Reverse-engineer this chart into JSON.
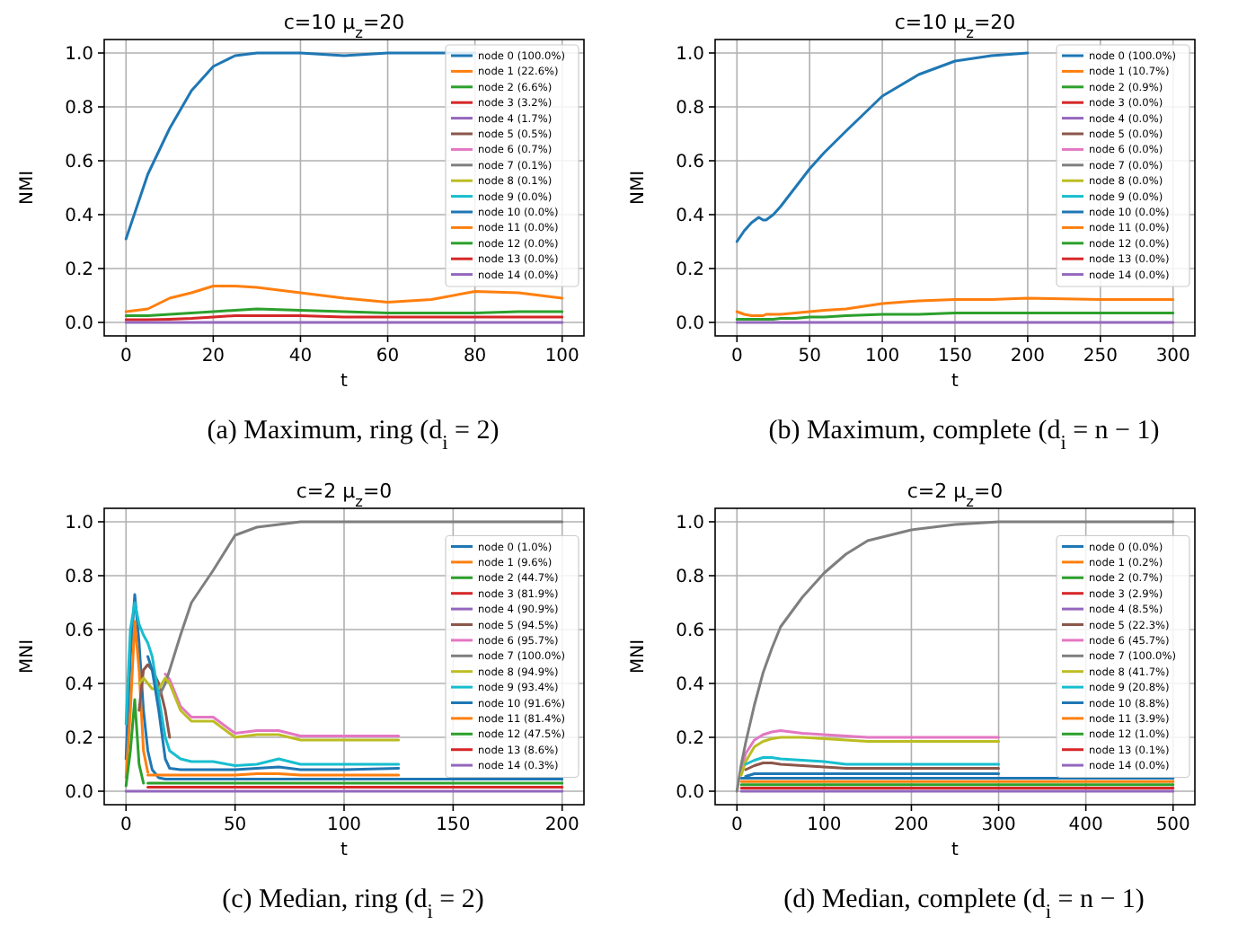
{
  "chart_data": [
    {
      "type": "line",
      "title": "c=10 μ$_{z}$=20",
      "xlabel": "t",
      "ylabel": "NMI",
      "annotations": [
        "(a) Maximum, ring (d$_{i}$ = 2)"
      ],
      "grid": true,
      "legend": "top right",
      "xlim": [
        -5,
        105
      ],
      "ylim": [
        -0.05,
        1.05
      ],
      "xticks": [
        0,
        20,
        40,
        60,
        80,
        100
      ],
      "yticks": [
        {
          "value": 0,
          "label": "0.0"
        },
        {
          "value": 0.2,
          "label": "0.2"
        },
        {
          "value": 0.4,
          "label": "0.4"
        },
        {
          "value": 0.6,
          "label": "0.6"
        },
        {
          "value": 0.8,
          "label": "0.8"
        },
        {
          "value": 1,
          "label": "1.0"
        }
      ],
      "x": [
        0,
        5,
        10,
        15,
        20,
        25,
        30,
        40,
        50,
        60,
        70,
        80,
        90,
        100
      ],
      "series": [
        {
          "name": "node 0 (100.0%)",
          "color": "#1f77b4",
          "values": [
            0.31,
            0.55,
            0.72,
            0.86,
            0.95,
            0.99,
            1.0,
            1.0,
            0.99,
            1.0,
            1.0,
            1.0,
            null,
            null
          ]
        },
        {
          "name": "node 1 (22.6%)",
          "color": "#ff7f0e",
          "values": [
            0.04,
            0.05,
            0.09,
            0.11,
            0.135,
            0.135,
            0.13,
            0.11,
            0.09,
            0.075,
            0.085,
            0.115,
            0.11,
            0.09
          ]
        },
        {
          "name": "node 2 (6.6%)",
          "color": "#2ca02c",
          "values": [
            0.025,
            0.025,
            0.03,
            0.035,
            0.04,
            0.045,
            0.05,
            0.045,
            0.04,
            0.035,
            0.035,
            0.035,
            0.04,
            0.04
          ]
        },
        {
          "name": "node 3 (3.2%)",
          "color": "#d62728",
          "values": [
            0.01,
            0.01,
            0.012,
            0.015,
            0.02,
            0.025,
            0.025,
            0.025,
            0.02,
            0.02,
            0.02,
            0.02,
            0.02,
            0.02
          ]
        },
        {
          "name": "node 4 (1.7%)",
          "color": "#9467bd",
          "values": [
            null,
            null,
            null,
            null,
            null,
            null,
            null,
            null,
            null,
            null,
            null,
            null,
            null,
            null
          ]
        },
        {
          "name": "node 5 (0.5%)",
          "color": "#8c564b",
          "values": [
            null,
            null,
            null,
            null,
            null,
            null,
            null,
            null,
            null,
            null,
            null,
            null,
            null,
            null
          ]
        },
        {
          "name": "node 6 (0.7%)",
          "color": "#e377c2",
          "values": [
            null,
            null,
            null,
            null,
            null,
            null,
            null,
            null,
            null,
            null,
            null,
            null,
            null,
            null
          ]
        },
        {
          "name": "node 7 (0.1%)",
          "color": "#7f7f7f",
          "values": [
            null,
            null,
            null,
            null,
            null,
            null,
            null,
            null,
            null,
            null,
            null,
            null,
            null,
            null
          ]
        },
        {
          "name": "node 8 (0.1%)",
          "color": "#bcbd22",
          "values": [
            null,
            null,
            null,
            null,
            null,
            null,
            null,
            null,
            null,
            null,
            null,
            null,
            null,
            null
          ]
        },
        {
          "name": "node 9 (0.0%)",
          "color": "#17becf",
          "values": [
            null,
            null,
            null,
            null,
            null,
            null,
            null,
            null,
            null,
            null,
            null,
            null,
            null,
            null
          ]
        },
        {
          "name": "node 10 (0.0%)",
          "color": "#1f77b4",
          "values": [
            null,
            null,
            null,
            null,
            null,
            null,
            null,
            null,
            null,
            null,
            null,
            null,
            null,
            null
          ]
        },
        {
          "name": "node 11 (0.0%)",
          "color": "#ff7f0e",
          "values": [
            null,
            null,
            null,
            null,
            null,
            null,
            null,
            null,
            null,
            null,
            null,
            null,
            null,
            null
          ]
        },
        {
          "name": "node 12 (0.0%)",
          "color": "#2ca02c",
          "values": [
            null,
            null,
            null,
            null,
            null,
            null,
            null,
            null,
            null,
            null,
            null,
            null,
            null,
            null
          ]
        },
        {
          "name": "node 13 (0.0%)",
          "color": "#d62728",
          "values": [
            null,
            null,
            null,
            null,
            null,
            null,
            null,
            null,
            null,
            null,
            null,
            null,
            null,
            null
          ]
        },
        {
          "name": "node 14 (0.0%)",
          "color": "#9467bd",
          "values": [
            0.0,
            0.0,
            0.0,
            0.0,
            0.0,
            0.0,
            0.0,
            0.0,
            0.0,
            0.0,
            0.0,
            0.0,
            0.0,
            0.0
          ]
        }
      ]
    },
    {
      "type": "line",
      "title": "c=10 μ$_{z}$=20",
      "xlabel": "t",
      "ylabel": "NMI",
      "annotations": [
        "(b) Maximum, complete (d$_{i}$ = n − 1)"
      ],
      "grid": true,
      "legend": "top right",
      "xlim": [
        -15,
        315
      ],
      "ylim": [
        -0.05,
        1.05
      ],
      "xticks": [
        0,
        50,
        100,
        150,
        200,
        250,
        300
      ],
      "yticks": [
        {
          "value": 0,
          "label": "0.0"
        },
        {
          "value": 0.2,
          "label": "0.2"
        },
        {
          "value": 0.4,
          "label": "0.4"
        },
        {
          "value": 0.6,
          "label": "0.6"
        },
        {
          "value": 0.8,
          "label": "0.8"
        },
        {
          "value": 1,
          "label": "1.0"
        }
      ],
      "x": [
        0,
        5,
        10,
        15,
        18,
        20,
        25,
        30,
        40,
        50,
        60,
        75,
        100,
        125,
        150,
        175,
        200,
        250,
        300
      ],
      "series": [
        {
          "name": "node 0 (100.0%)",
          "color": "#1f77b4",
          "values": [
            0.3,
            0.34,
            0.37,
            0.39,
            0.38,
            0.38,
            0.4,
            0.43,
            0.5,
            0.57,
            0.63,
            0.71,
            0.84,
            0.92,
            0.97,
            0.99,
            1.0,
            null,
            null
          ]
        },
        {
          "name": "node 1 (10.7%)",
          "color": "#ff7f0e",
          "values": [
            0.04,
            0.03,
            0.025,
            0.025,
            0.025,
            0.03,
            0.03,
            0.03,
            0.035,
            0.04,
            0.045,
            0.05,
            0.07,
            0.08,
            0.085,
            0.085,
            0.09,
            0.085,
            0.085
          ]
        },
        {
          "name": "node 2 (0.9%)",
          "color": "#2ca02c",
          "values": [
            0.012,
            0.012,
            0.012,
            0.012,
            0.012,
            0.012,
            0.012,
            0.015,
            0.015,
            0.02,
            0.02,
            0.025,
            0.03,
            0.03,
            0.035,
            0.035,
            0.035,
            0.035,
            0.035
          ]
        },
        {
          "name": "node 3 (0.0%)",
          "color": "#d62728",
          "values": [
            null,
            null,
            null,
            null,
            null,
            null,
            null,
            null,
            null,
            null,
            null,
            null,
            null,
            null,
            null,
            null,
            null,
            null,
            null
          ]
        },
        {
          "name": "node 4 (0.0%)",
          "color": "#9467bd",
          "values": [
            null,
            null,
            null,
            null,
            null,
            null,
            null,
            null,
            null,
            null,
            null,
            null,
            null,
            null,
            null,
            null,
            null,
            null,
            null
          ]
        },
        {
          "name": "node 5 (0.0%)",
          "color": "#8c564b",
          "values": [
            null,
            null,
            null,
            null,
            null,
            null,
            null,
            null,
            null,
            null,
            null,
            null,
            null,
            null,
            null,
            null,
            null,
            null,
            null
          ]
        },
        {
          "name": "node 6 (0.0%)",
          "color": "#e377c2",
          "values": [
            null,
            null,
            null,
            null,
            null,
            null,
            null,
            null,
            null,
            null,
            null,
            null,
            null,
            null,
            null,
            null,
            null,
            null,
            null
          ]
        },
        {
          "name": "node 7 (0.0%)",
          "color": "#7f7f7f",
          "values": [
            null,
            null,
            null,
            null,
            null,
            null,
            null,
            null,
            null,
            null,
            null,
            null,
            null,
            null,
            null,
            null,
            null,
            null,
            null
          ]
        },
        {
          "name": "node 8 (0.0%)",
          "color": "#bcbd22",
          "values": [
            null,
            null,
            null,
            null,
            null,
            null,
            null,
            null,
            null,
            null,
            null,
            null,
            null,
            null,
            null,
            null,
            null,
            null,
            null
          ]
        },
        {
          "name": "node 9 (0.0%)",
          "color": "#17becf",
          "values": [
            null,
            null,
            null,
            null,
            null,
            null,
            null,
            null,
            null,
            null,
            null,
            null,
            null,
            null,
            null,
            null,
            null,
            null,
            null
          ]
        },
        {
          "name": "node 10 (0.0%)",
          "color": "#1f77b4",
          "values": [
            null,
            null,
            null,
            null,
            null,
            null,
            null,
            null,
            null,
            null,
            null,
            null,
            null,
            null,
            null,
            null,
            null,
            null,
            null
          ]
        },
        {
          "name": "node 11 (0.0%)",
          "color": "#ff7f0e",
          "values": [
            null,
            null,
            null,
            null,
            null,
            null,
            null,
            null,
            null,
            null,
            null,
            null,
            null,
            null,
            null,
            null,
            null,
            null,
            null
          ]
        },
        {
          "name": "node 12 (0.0%)",
          "color": "#2ca02c",
          "values": [
            null,
            null,
            null,
            null,
            null,
            null,
            null,
            null,
            null,
            null,
            null,
            null,
            null,
            null,
            null,
            null,
            null,
            null,
            null
          ]
        },
        {
          "name": "node 13 (0.0%)",
          "color": "#d62728",
          "values": [
            null,
            null,
            null,
            null,
            null,
            null,
            null,
            null,
            null,
            null,
            null,
            null,
            null,
            null,
            null,
            null,
            null,
            null,
            null
          ]
        },
        {
          "name": "node 14 (0.0%)",
          "color": "#9467bd",
          "values": [
            0.0,
            0.0,
            0.0,
            0.0,
            0.0,
            0.0,
            0.0,
            0.0,
            0.0,
            0.0,
            0.0,
            0.0,
            0.0,
            0.0,
            0.0,
            0.0,
            0.0,
            0.0,
            0.0
          ]
        }
      ]
    },
    {
      "type": "line",
      "title": "c=2 μ$_{z}$=0",
      "xlabel": "t",
      "ylabel": "MNI",
      "annotations": [
        "(c) Median, ring (d$_{i}$ = 2)"
      ],
      "grid": true,
      "legend": "right",
      "xlim": [
        -10,
        210
      ],
      "ylim": [
        -0.05,
        1.05
      ],
      "xticks": [
        0,
        50,
        100,
        150,
        200
      ],
      "yticks": [
        {
          "value": 0,
          "label": "0.0"
        },
        {
          "value": 0.2,
          "label": "0.2"
        },
        {
          "value": 0.4,
          "label": "0.4"
        },
        {
          "value": 0.6,
          "label": "0.6"
        },
        {
          "value": 0.8,
          "label": "0.8"
        },
        {
          "value": 1,
          "label": "1.0"
        }
      ],
      "x": [
        0,
        2,
        4,
        6,
        8,
        10,
        12,
        15,
        18,
        20,
        25,
        30,
        40,
        50,
        60,
        70,
        80,
        100,
        125,
        150,
        175,
        200
      ],
      "series": [
        {
          "name": "node 0 (1.0%)",
          "color": "#1f77b4",
          "values": [
            0.12,
            0.5,
            0.73,
            0.55,
            0.3,
            0.15,
            0.08,
            0.05,
            0.045,
            0.045,
            0.045,
            0.045,
            0.045,
            0.045,
            0.045,
            0.045,
            0.045,
            0.045,
            0.045,
            0.045,
            0.045,
            0.045
          ]
        },
        {
          "name": "node 1 (9.6%)",
          "color": "#ff7f0e",
          "values": [
            0.05,
            0.3,
            0.63,
            0.45,
            0.15,
            0.07,
            null,
            null,
            null,
            null,
            null,
            null,
            null,
            null,
            null,
            null,
            null,
            null,
            null,
            null,
            null,
            null
          ]
        },
        {
          "name": "node 2 (44.7%)",
          "color": "#2ca02c",
          "values": [
            0.02,
            0.15,
            0.34,
            0.1,
            0.03,
            null,
            null,
            null,
            null,
            null,
            null,
            null,
            null,
            null,
            null,
            null,
            null,
            null,
            null,
            null,
            null,
            null
          ]
        },
        {
          "name": "node 3 (81.9%)",
          "color": "#d62728",
          "values": [
            null,
            null,
            null,
            null,
            null,
            null,
            null,
            null,
            null,
            null,
            null,
            null,
            null,
            null,
            null,
            null,
            null,
            null,
            null,
            null,
            null,
            null
          ]
        },
        {
          "name": "node 4 (90.9%)",
          "color": "#9467bd",
          "values": [
            null,
            null,
            null,
            null,
            null,
            null,
            null,
            null,
            null,
            null,
            null,
            null,
            null,
            null,
            null,
            null,
            null,
            null,
            null,
            null,
            null,
            null
          ]
        },
        {
          "name": "node 5 (94.5%)",
          "color": "#8c564b",
          "values": [
            null,
            null,
            null,
            0.3,
            0.45,
            0.47,
            0.45,
            0.4,
            0.3,
            0.2,
            null,
            null,
            null,
            null,
            null,
            null,
            null,
            null,
            null,
            null,
            null,
            null
          ]
        },
        {
          "name": "node 6 (95.7%)",
          "color": "#e377c2",
          "values": [
            null,
            null,
            null,
            null,
            null,
            null,
            null,
            null,
            0.435,
            0.415,
            0.315,
            0.275,
            0.275,
            0.215,
            0.225,
            0.225,
            0.205,
            0.205,
            0.205,
            null,
            null,
            null
          ]
        },
        {
          "name": "node 7 (100.0%)",
          "color": "#7f7f7f",
          "values": [
            null,
            null,
            null,
            null,
            null,
            null,
            null,
            0.35,
            0.4,
            0.45,
            0.58,
            0.7,
            0.82,
            0.95,
            0.98,
            0.99,
            1.0,
            1.0,
            1.0,
            1.0,
            1.0,
            1.0
          ]
        },
        {
          "name": "node 8 (94.9%)",
          "color": "#bcbd22",
          "values": [
            null,
            null,
            null,
            0.4,
            0.42,
            0.4,
            0.38,
            0.38,
            0.42,
            0.4,
            0.3,
            0.26,
            0.26,
            0.2,
            0.21,
            0.21,
            0.19,
            0.19,
            0.19,
            null,
            null,
            null
          ]
        },
        {
          "name": "node 9 (93.4%)",
          "color": "#17becf",
          "values": [
            0.25,
            0.6,
            0.7,
            0.62,
            0.58,
            0.55,
            0.5,
            0.35,
            0.2,
            0.15,
            0.12,
            0.11,
            0.11,
            0.095,
            0.1,
            0.12,
            0.1,
            0.1,
            0.1,
            null,
            null,
            null
          ]
        },
        {
          "name": "node 10 (91.6%)",
          "color": "#1f77b4",
          "values": [
            null,
            null,
            null,
            null,
            null,
            0.5,
            0.45,
            0.3,
            0.12,
            0.085,
            0.08,
            0.08,
            0.08,
            0.08,
            0.085,
            0.09,
            0.08,
            0.08,
            0.085,
            null,
            null,
            null
          ]
        },
        {
          "name": "node 11 (81.4%)",
          "color": "#ff7f0e",
          "values": [
            null,
            null,
            null,
            null,
            null,
            0.06,
            0.06,
            0.06,
            0.06,
            0.06,
            0.06,
            0.06,
            0.06,
            0.06,
            0.065,
            0.065,
            0.06,
            0.06,
            0.06,
            null,
            null,
            null
          ]
        },
        {
          "name": "node 12 (47.5%)",
          "color": "#2ca02c",
          "values": [
            null,
            null,
            null,
            null,
            null,
            0.03,
            0.03,
            0.03,
            0.03,
            0.03,
            0.03,
            0.03,
            0.03,
            0.03,
            0.03,
            0.03,
            0.03,
            0.03,
            0.03,
            0.03,
            0.03,
            0.03
          ]
        },
        {
          "name": "node 13 (8.6%)",
          "color": "#d62728",
          "values": [
            null,
            null,
            null,
            null,
            null,
            0.015,
            0.015,
            0.015,
            0.015,
            0.015,
            0.015,
            0.015,
            0.015,
            0.015,
            0.015,
            0.015,
            0.015,
            0.015,
            0.015,
            0.015,
            0.015,
            0.015
          ]
        },
        {
          "name": "node 14 (0.3%)",
          "color": "#9467bd",
          "values": [
            0.0,
            0.0,
            0.0,
            0.0,
            0.0,
            0.0,
            0.0,
            0.0,
            0.0,
            0.0,
            0.0,
            0.0,
            0.0,
            0.0,
            0.0,
            0.0,
            0.0,
            0.0,
            0.0,
            0.0,
            0.0,
            0.0
          ]
        }
      ]
    },
    {
      "type": "line",
      "title": "c=2 μ$_{z}$=0",
      "xlabel": "t",
      "ylabel": "MNI",
      "annotations": [
        "(d) Median, complete (d$_{i}$ = n − 1)"
      ],
      "grid": true,
      "legend": "right",
      "xlim": [
        -25,
        525
      ],
      "ylim": [
        -0.05,
        1.05
      ],
      "xticks": [
        0,
        100,
        200,
        300,
        400,
        500
      ],
      "yticks": [
        {
          "value": 0,
          "label": "0.0"
        },
        {
          "value": 0.2,
          "label": "0.2"
        },
        {
          "value": 0.4,
          "label": "0.4"
        },
        {
          "value": 0.6,
          "label": "0.6"
        },
        {
          "value": 0.8,
          "label": "0.8"
        },
        {
          "value": 1,
          "label": "1.0"
        }
      ],
      "x": [
        0,
        5,
        10,
        20,
        30,
        40,
        50,
        75,
        100,
        125,
        150,
        200,
        250,
        300,
        400,
        500
      ],
      "series": [
        {
          "name": "node 0 (0.0%)",
          "color": "#1f77b4",
          "values": [
            null,
            0.048,
            0.048,
            0.048,
            0.048,
            0.048,
            0.048,
            0.048,
            0.048,
            0.048,
            0.048,
            0.048,
            0.048,
            0.048,
            0.048,
            0.048
          ]
        },
        {
          "name": "node 1 (0.2%)",
          "color": "#ff7f0e",
          "values": [
            null,
            null,
            null,
            null,
            null,
            null,
            null,
            null,
            null,
            null,
            null,
            null,
            null,
            null,
            null,
            null
          ]
        },
        {
          "name": "node 2 (0.7%)",
          "color": "#2ca02c",
          "values": [
            null,
            null,
            null,
            null,
            null,
            null,
            null,
            null,
            null,
            null,
            null,
            null,
            null,
            null,
            null,
            null
          ]
        },
        {
          "name": "node 3 (2.9%)",
          "color": "#d62728",
          "values": [
            null,
            null,
            null,
            null,
            null,
            null,
            null,
            null,
            null,
            null,
            null,
            null,
            null,
            null,
            null,
            null
          ]
        },
        {
          "name": "node 4 (8.5%)",
          "color": "#9467bd",
          "values": [
            null,
            null,
            null,
            null,
            null,
            null,
            null,
            null,
            null,
            null,
            null,
            null,
            null,
            null,
            null,
            null
          ]
        },
        {
          "name": "node 5 (22.3%)",
          "color": "#8c564b",
          "values": [
            null,
            null,
            0.08,
            0.095,
            0.105,
            0.105,
            0.1,
            0.095,
            0.09,
            0.085,
            0.085,
            0.085,
            0.085,
            0.085,
            null,
            null
          ]
        },
        {
          "name": "node 6 (45.7%)",
          "color": "#e377c2",
          "values": [
            null,
            0.08,
            0.14,
            0.19,
            0.21,
            0.22,
            0.225,
            0.215,
            0.21,
            0.205,
            0.2,
            0.2,
            0.2,
            0.2,
            null,
            null
          ]
        },
        {
          "name": "node 7 (100.0%)",
          "color": "#7f7f7f",
          "values": [
            0.0,
            0.1,
            0.18,
            0.32,
            0.44,
            0.53,
            0.61,
            0.72,
            0.81,
            0.88,
            0.93,
            0.97,
            0.99,
            1.0,
            1.0,
            1.0
          ]
        },
        {
          "name": "node 8 (41.7%)",
          "color": "#bcbd22",
          "values": [
            null,
            0.06,
            0.11,
            0.165,
            0.185,
            0.195,
            0.2,
            0.2,
            0.195,
            0.19,
            0.185,
            0.185,
            0.185,
            0.185,
            null,
            null
          ]
        },
        {
          "name": "node 9 (20.8%)",
          "color": "#17becf",
          "values": [
            null,
            null,
            0.1,
            0.115,
            0.125,
            0.125,
            0.12,
            0.115,
            0.11,
            0.1,
            0.1,
            0.1,
            0.1,
            0.1,
            null,
            null
          ]
        },
        {
          "name": "node 10 (8.8%)",
          "color": "#1f77b4",
          "values": [
            null,
            null,
            0.055,
            0.065,
            0.065,
            0.065,
            0.065,
            0.065,
            0.065,
            0.065,
            0.065,
            0.065,
            0.065,
            0.065,
            null,
            null
          ]
        },
        {
          "name": "node 11 (3.9%)",
          "color": "#ff7f0e",
          "values": [
            null,
            0.036,
            0.036,
            0.036,
            0.036,
            0.036,
            0.036,
            0.036,
            0.036,
            0.036,
            0.036,
            0.036,
            0.036,
            0.036,
            0.036,
            0.036
          ]
        },
        {
          "name": "node 12 (1.0%)",
          "color": "#2ca02c",
          "values": [
            null,
            0.024,
            0.024,
            0.024,
            0.024,
            0.024,
            0.024,
            0.024,
            0.024,
            0.024,
            0.024,
            0.024,
            0.024,
            0.024,
            0.024,
            0.024
          ]
        },
        {
          "name": "node 13 (0.1%)",
          "color": "#d62728",
          "values": [
            null,
            0.012,
            0.012,
            0.012,
            0.012,
            0.012,
            0.012,
            0.012,
            0.012,
            0.012,
            0.012,
            0.012,
            0.012,
            0.012,
            0.012,
            0.012
          ]
        },
        {
          "name": "node 14 (0.0%)",
          "color": "#9467bd",
          "values": [
            null,
            0.0,
            0.0,
            0.0,
            0.0,
            0.0,
            0.0,
            0.0,
            0.0,
            0.0,
            0.0,
            0.0,
            0.0,
            0.0,
            0.0,
            0.0
          ]
        }
      ]
    }
  ]
}
